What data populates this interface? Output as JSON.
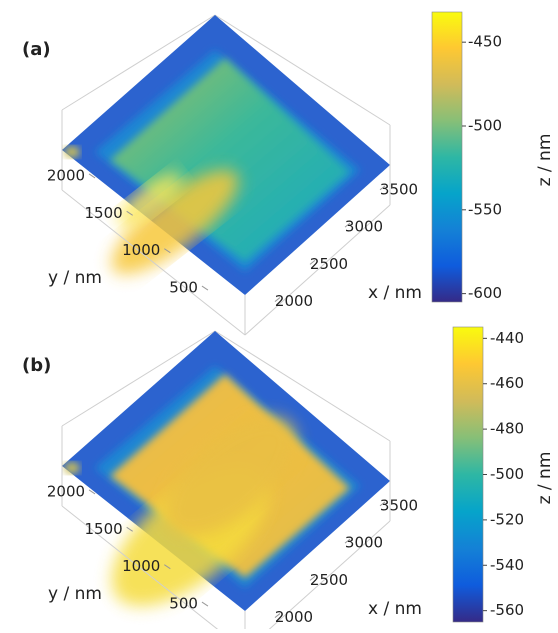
{
  "chart_data": [
    {
      "type": "surface",
      "title": "(a)",
      "xlabel": "x / nm",
      "ylabel": "y / nm",
      "zlabel": "z / nm",
      "xlim": [
        1900,
        3700
      ],
      "xticks": [
        2000,
        2500,
        3000,
        3500
      ],
      "ylim": [
        300,
        2200
      ],
      "yticks": [
        500,
        1000,
        1500,
        2000
      ],
      "zlim": [
        -605,
        -432
      ],
      "zticks": [
        -600,
        -550,
        -500,
        -450
      ],
      "colormap": [
        "#352a87",
        "#0f5cdd",
        "#1481d6",
        "#06a4ca",
        "#2eb7a4",
        "#87bf77",
        "#d1bb59",
        "#fec832",
        "#f9fb0e"
      ]
    },
    {
      "type": "surface",
      "title": "(b)",
      "xlabel": "x / nm",
      "ylabel": "y / nm",
      "zlabel": "z / nm",
      "xlim": [
        1900,
        3700
      ],
      "xticks": [
        2000,
        2500,
        3000,
        3500
      ],
      "ylim": [
        300,
        2200
      ],
      "yticks": [
        500,
        1000,
        1500,
        2000
      ],
      "zlim": [
        -565,
        -435
      ],
      "zticks": [
        -560,
        -540,
        -520,
        -500,
        -480,
        -460,
        -440
      ],
      "colormap": [
        "#352a87",
        "#0f5cdd",
        "#1481d6",
        "#06a4ca",
        "#2eb7a4",
        "#87bf77",
        "#d1bb59",
        "#fec832",
        "#f9fb0e"
      ]
    }
  ]
}
